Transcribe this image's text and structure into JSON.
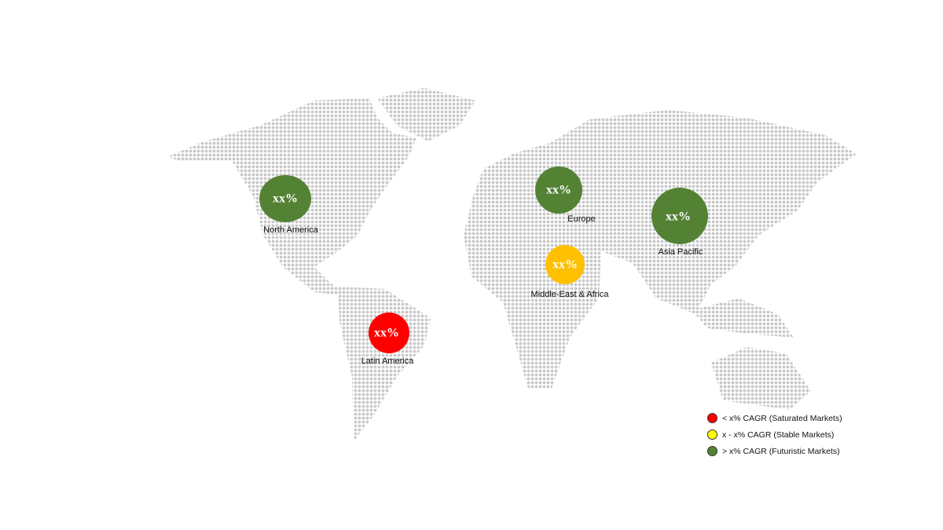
{
  "colors": {
    "saturated": "#FF0000",
    "stable": "#FFC000",
    "futuristic": "#548235",
    "map_dots": "#c8c8c8",
    "legend_stable": "#FFFF00"
  },
  "regions": [
    {
      "name": "North America",
      "value": "xx%",
      "category": "futuristic"
    },
    {
      "name": "Europe",
      "value": "xx%",
      "category": "futuristic"
    },
    {
      "name": "Asia Pacific",
      "value": "xx%",
      "category": "futuristic"
    },
    {
      "name": "Middle-East & Africa",
      "value": "xx%",
      "category": "stable"
    },
    {
      "name": "Latin America",
      "value": "xx%",
      "category": "saturated"
    }
  ],
  "legend": [
    {
      "label": "< x% CAGR (Saturated Markets)",
      "category": "saturated"
    },
    {
      "label": "x - x% CAGR (Stable Markets)",
      "category": "stable"
    },
    {
      "label": "> x% CAGR (Futuristic Markets)",
      "category": "futuristic"
    }
  ]
}
